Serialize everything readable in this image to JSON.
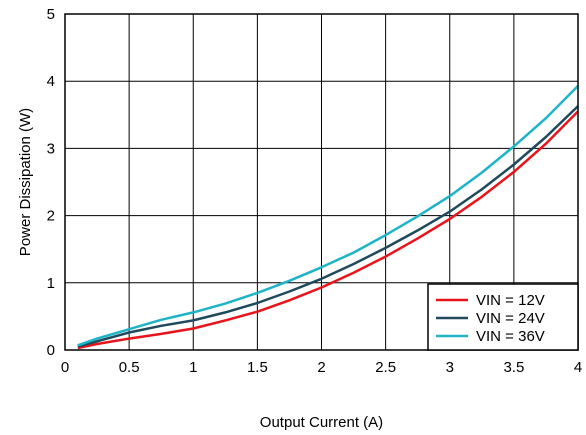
{
  "chart_data": {
    "type": "line",
    "title": "",
    "xlabel": "Output Current (A)",
    "ylabel": "Power Dissipation (W)",
    "xlim": [
      0,
      4
    ],
    "ylim": [
      0,
      5
    ],
    "x_ticks": [
      0,
      0.5,
      1,
      1.5,
      2,
      2.5,
      3,
      3.5,
      4
    ],
    "x_tick_labels": [
      "0",
      "0.5",
      "1",
      "1.5",
      "2",
      "2.5",
      "3",
      "3.5",
      "4"
    ],
    "y_ticks": [
      0,
      1,
      2,
      3,
      4,
      5
    ],
    "y_tick_labels": [
      "0",
      "1",
      "2",
      "3",
      "4",
      "5"
    ],
    "grid": true,
    "legend_position": "bottom-right",
    "series": [
      {
        "name": "VIN = 12V",
        "color": "#e8141b",
        "x": [
          0.1,
          0.25,
          0.5,
          0.75,
          1,
          1.25,
          1.5,
          1.75,
          2,
          2.25,
          2.5,
          2.75,
          3,
          3.25,
          3.5,
          3.75,
          4
        ],
        "y": [
          0.03,
          0.09,
          0.17,
          0.24,
          0.32,
          0.44,
          0.57,
          0.74,
          0.93,
          1.15,
          1.39,
          1.66,
          1.95,
          2.28,
          2.65,
          3.07,
          3.55
        ]
      },
      {
        "name": "VIN = 24V",
        "color": "#1f4a5c",
        "x": [
          0.1,
          0.25,
          0.5,
          0.75,
          1,
          1.25,
          1.5,
          1.75,
          2,
          2.25,
          2.5,
          2.75,
          3,
          3.25,
          3.5,
          3.75,
          4
        ],
        "y": [
          0.05,
          0.13,
          0.26,
          0.36,
          0.44,
          0.56,
          0.7,
          0.87,
          1.06,
          1.28,
          1.52,
          1.78,
          2.06,
          2.39,
          2.76,
          3.17,
          3.63
        ]
      },
      {
        "name": "VIN = 36V",
        "color": "#1eb4c8",
        "x": [
          0.1,
          0.25,
          0.5,
          0.75,
          1,
          1.25,
          1.5,
          1.75,
          2,
          2.25,
          2.5,
          2.75,
          3,
          3.25,
          3.5,
          3.75,
          4
        ],
        "y": [
          0.07,
          0.17,
          0.31,
          0.45,
          0.56,
          0.69,
          0.85,
          1.03,
          1.23,
          1.45,
          1.71,
          1.99,
          2.29,
          2.64,
          3.03,
          3.45,
          3.93
        ]
      }
    ]
  }
}
